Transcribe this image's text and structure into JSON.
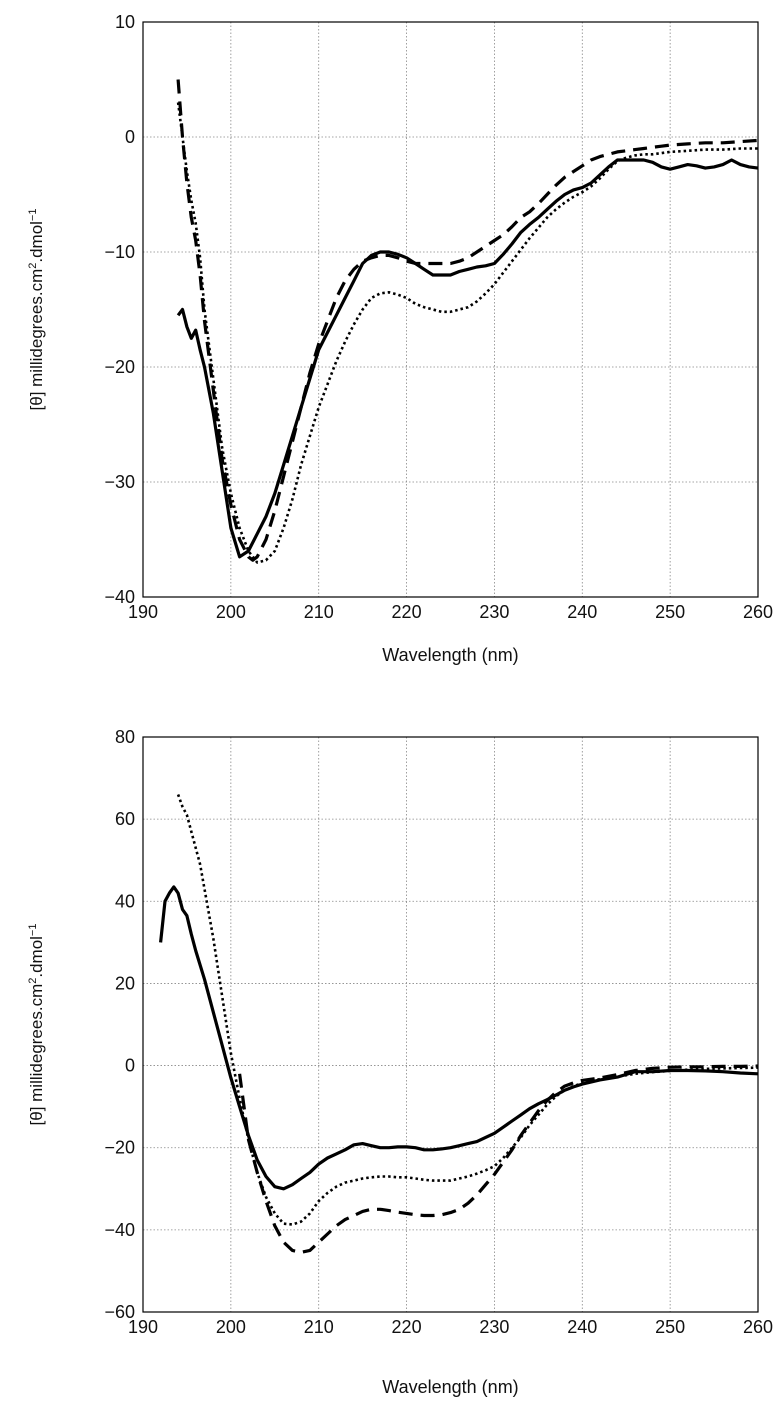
{
  "chart_data": [
    {
      "type": "line",
      "title": "",
      "xlabel": "Wavelength (nm)",
      "ylabel": "[θ] millidegrees.cm",
      "ylabel_sup1": "2",
      "ylabel_mid": ".dmol",
      "ylabel_sup2": "−1",
      "xlim": [
        190,
        260
      ],
      "ylim": [
        -40,
        10
      ],
      "xticks": [
        190,
        200,
        210,
        220,
        230,
        240,
        250,
        260
      ],
      "yticks": [
        -40,
        -30,
        -20,
        -10,
        0,
        10
      ],
      "xtick_labels": [
        "190",
        "200",
        "210",
        "220",
        "230",
        "240",
        "250",
        "260"
      ],
      "ytick_labels": [
        "−40",
        "−30",
        "−20",
        "−10",
        "0",
        "10"
      ],
      "grid": true,
      "legend": "none",
      "series": [
        {
          "style": "solid",
          "x": [
            194,
            194.5,
            195,
            195.5,
            196,
            196.5,
            197,
            198,
            199,
            200,
            201,
            202,
            203,
            204,
            205,
            206,
            207,
            208,
            209,
            210,
            211,
            212,
            213,
            214,
            215,
            216,
            217,
            218,
            219,
            220,
            221,
            222,
            223,
            224,
            225,
            226,
            227,
            228,
            229,
            230,
            231,
            232,
            233,
            234,
            235,
            236,
            237,
            238,
            239,
            240,
            241,
            242,
            243,
            244,
            245,
            246,
            247,
            248,
            249,
            250,
            251,
            252,
            253,
            254,
            255,
            256,
            257,
            258,
            259,
            260
          ],
          "y": [
            -15.5,
            -15,
            -16.5,
            -17.5,
            -16.8,
            -18.5,
            -20,
            -24,
            -29,
            -34,
            -36.5,
            -36,
            -34.5,
            -33,
            -31,
            -28.5,
            -26,
            -23.5,
            -21,
            -18.5,
            -17,
            -15.5,
            -14,
            -12.5,
            -11,
            -10.3,
            -10,
            -10,
            -10.2,
            -10.5,
            -11,
            -11.5,
            -12,
            -12,
            -12,
            -11.7,
            -11.5,
            -11.3,
            -11.2,
            -11,
            -10.2,
            -9.3,
            -8.3,
            -7.6,
            -7,
            -6.3,
            -5.6,
            -5,
            -4.6,
            -4.4,
            -4,
            -3.3,
            -2.6,
            -2,
            -2,
            -2,
            -2,
            -2.2,
            -2.6,
            -2.8,
            -2.6,
            -2.4,
            -2.5,
            -2.7,
            -2.6,
            -2.4,
            -2,
            -2.4,
            -2.6,
            -2.7
          ]
        },
        {
          "style": "dashed",
          "x": [
            194,
            194.5,
            195,
            195.5,
            196,
            196.5,
            197,
            198,
            199,
            200,
            201,
            202,
            202.5,
            203,
            204,
            205,
            206,
            207,
            208,
            209,
            210,
            211,
            212,
            213,
            214,
            215,
            216,
            217,
            218,
            219,
            220,
            221,
            222,
            223,
            224,
            225,
            226,
            227,
            228,
            229,
            230,
            231,
            232,
            233,
            234,
            235,
            236,
            237,
            238,
            239,
            240,
            241,
            242,
            243,
            244,
            245,
            246,
            247,
            248,
            249,
            250,
            252,
            254,
            256,
            258,
            260
          ],
          "y": [
            5,
            0,
            -4,
            -7,
            -9,
            -12,
            -16,
            -22,
            -28,
            -32,
            -35,
            -36.5,
            -36.8,
            -36.5,
            -35,
            -32.5,
            -29.5,
            -26.5,
            -23.5,
            -20.5,
            -18,
            -16,
            -14,
            -12.5,
            -11.5,
            -10.8,
            -10.5,
            -10.3,
            -10.3,
            -10.5,
            -10.8,
            -11,
            -11,
            -11,
            -11,
            -11,
            -10.8,
            -10.5,
            -10,
            -9.5,
            -9,
            -8.5,
            -7.8,
            -7,
            -6.5,
            -5.8,
            -5,
            -4.2,
            -3.5,
            -3,
            -2.5,
            -2,
            -1.7,
            -1.5,
            -1.3,
            -1.2,
            -1.1,
            -1,
            -0.9,
            -0.8,
            -0.7,
            -0.6,
            -0.5,
            -0.5,
            -0.4,
            -0.3
          ]
        },
        {
          "style": "dotted",
          "x": [
            194,
            194.5,
            195,
            195.5,
            196,
            196.5,
            197,
            198,
            199,
            200,
            201,
            202,
            203,
            204,
            205,
            206,
            207,
            208,
            209,
            210,
            211,
            212,
            213,
            214,
            215,
            216,
            217,
            218,
            219,
            220,
            221,
            222,
            223,
            224,
            225,
            226,
            227,
            228,
            229,
            230,
            231,
            232,
            233,
            234,
            235,
            236,
            237,
            238,
            239,
            240,
            241,
            242,
            243,
            244,
            245,
            246,
            247,
            248,
            249,
            250,
            252,
            254,
            256,
            258,
            260
          ],
          "y": [
            3,
            0,
            -3,
            -5.5,
            -7.5,
            -10.5,
            -15,
            -21,
            -27,
            -31,
            -34,
            -36,
            -37,
            -36.8,
            -36,
            -34,
            -31.5,
            -28.5,
            -26,
            -23.5,
            -21.5,
            -19.5,
            -17.8,
            -16.3,
            -15,
            -14,
            -13.6,
            -13.5,
            -13.7,
            -14,
            -14.5,
            -14.8,
            -15,
            -15.2,
            -15.2,
            -15,
            -14.8,
            -14.3,
            -13.6,
            -12.8,
            -11.8,
            -10.8,
            -9.8,
            -8.8,
            -7.9,
            -7,
            -6.3,
            -5.7,
            -5.2,
            -4.8,
            -4.3,
            -3.6,
            -2.8,
            -2.1,
            -1.8,
            -1.6,
            -1.5,
            -1.5,
            -1.4,
            -1.3,
            -1.2,
            -1.1,
            -1.1,
            -1,
            -1
          ]
        }
      ]
    },
    {
      "type": "line",
      "title": "",
      "xlabel": "Wavelength (nm)",
      "ylabel": "[θ] millidegrees.cm",
      "ylabel_sup1": "2",
      "ylabel_mid": ".dmol",
      "ylabel_sup2": "−1",
      "xlim": [
        190,
        260
      ],
      "ylim": [
        -60,
        80
      ],
      "xticks": [
        190,
        200,
        210,
        220,
        230,
        240,
        250,
        260
      ],
      "yticks": [
        -60,
        -40,
        -20,
        0,
        20,
        40,
        60,
        80
      ],
      "xtick_labels": [
        "190",
        "200",
        "210",
        "220",
        "230",
        "240",
        "250",
        "260"
      ],
      "ytick_labels": [
        "−60",
        "−40",
        "−20",
        "0",
        "20",
        "40",
        "60",
        "80"
      ],
      "grid": true,
      "legend": "none",
      "series": [
        {
          "style": "solid",
          "x": [
            192,
            192.5,
            193,
            193.5,
            194,
            194.5,
            195,
            195.5,
            196,
            197,
            198,
            199,
            200,
            201,
            202,
            203,
            204,
            205,
            206,
            207,
            208,
            209,
            210,
            211,
            212,
            213,
            214,
            215,
            216,
            217,
            218,
            219,
            220,
            221,
            222,
            223,
            224,
            225,
            226,
            227,
            228,
            229,
            230,
            231,
            232,
            233,
            234,
            235,
            236,
            237,
            238,
            239,
            240,
            242,
            244,
            246,
            248,
            250,
            252,
            254,
            256,
            258,
            260
          ],
          "y": [
            30,
            40,
            42,
            43.5,
            42,
            38,
            36.5,
            32,
            28,
            21,
            13,
            5,
            -3,
            -10,
            -17,
            -23,
            -27,
            -29.5,
            -30,
            -29,
            -27.5,
            -26,
            -24,
            -22.5,
            -21.5,
            -20.5,
            -19.3,
            -19,
            -19.5,
            -20,
            -20,
            -19.8,
            -19.8,
            -20,
            -20.5,
            -20.5,
            -20.3,
            -20,
            -19.5,
            -19,
            -18.5,
            -17.5,
            -16.5,
            -15,
            -13.5,
            -12,
            -10.5,
            -9.3,
            -8.3,
            -7.2,
            -6,
            -5.2,
            -4.5,
            -3.5,
            -2.8,
            -1.5,
            -1.5,
            -1.2,
            -1.2,
            -1.3,
            -1.5,
            -1.8,
            -2
          ]
        },
        {
          "style": "dashed",
          "x": [
            201,
            201.5,
            202,
            203,
            204,
            205,
            206,
            207,
            208,
            209,
            210,
            211,
            212,
            213,
            214,
            215,
            216,
            217,
            218,
            219,
            220,
            221,
            222,
            223,
            224,
            225,
            226,
            227,
            228,
            229,
            230,
            231,
            232,
            233,
            234,
            235,
            236,
            237,
            238,
            239,
            240,
            242,
            244,
            246,
            248,
            250,
            252,
            254,
            256,
            258,
            260
          ],
          "y": [
            -2,
            -10,
            -18,
            -26,
            -33,
            -39,
            -43,
            -45,
            -45.5,
            -45,
            -43,
            -41,
            -39,
            -37.5,
            -36.5,
            -35.5,
            -35,
            -35,
            -35.3,
            -35.7,
            -36,
            -36.3,
            -36.5,
            -36.5,
            -36.3,
            -35.8,
            -35,
            -33.5,
            -31.5,
            -29,
            -26.5,
            -23.5,
            -20.5,
            -17,
            -14,
            -11,
            -8.5,
            -6.5,
            -5,
            -4.2,
            -3.6,
            -3,
            -2.2,
            -1.2,
            -0.7,
            -0.4,
            -0.3,
            -0.3,
            -0.2,
            -0.2,
            -0.1
          ]
        },
        {
          "style": "dotted",
          "x": [
            194,
            194.5,
            195,
            195.5,
            196,
            196.5,
            197,
            198,
            199,
            200,
            201,
            202,
            203,
            204,
            205,
            206,
            207,
            208,
            209,
            210,
            211,
            212,
            213,
            214,
            215,
            216,
            217,
            218,
            219,
            220,
            221,
            222,
            223,
            224,
            225,
            226,
            227,
            228,
            229,
            230,
            231,
            232,
            233,
            234,
            235,
            236,
            237,
            238,
            239,
            240,
            242,
            244,
            246,
            248,
            250,
            252,
            254,
            256,
            258,
            260
          ],
          "y": [
            66,
            63,
            61,
            57,
            53,
            49,
            43,
            31,
            17,
            3,
            -8,
            -18,
            -26,
            -32,
            -36,
            -38.5,
            -38.7,
            -38,
            -36,
            -33,
            -31,
            -29.5,
            -28.5,
            -28,
            -27.5,
            -27.2,
            -27,
            -27,
            -27.2,
            -27.2,
            -27.5,
            -27.8,
            -28,
            -28,
            -28,
            -27.5,
            -27,
            -26.3,
            -25.5,
            -24.5,
            -22.5,
            -20,
            -17.5,
            -14.5,
            -12,
            -9.5,
            -7.5,
            -6,
            -5,
            -4.3,
            -3.3,
            -2.7,
            -2,
            -1.6,
            -1.3,
            -1,
            -0.8,
            -0.7,
            -0.6,
            -0.5
          ]
        }
      ]
    }
  ]
}
